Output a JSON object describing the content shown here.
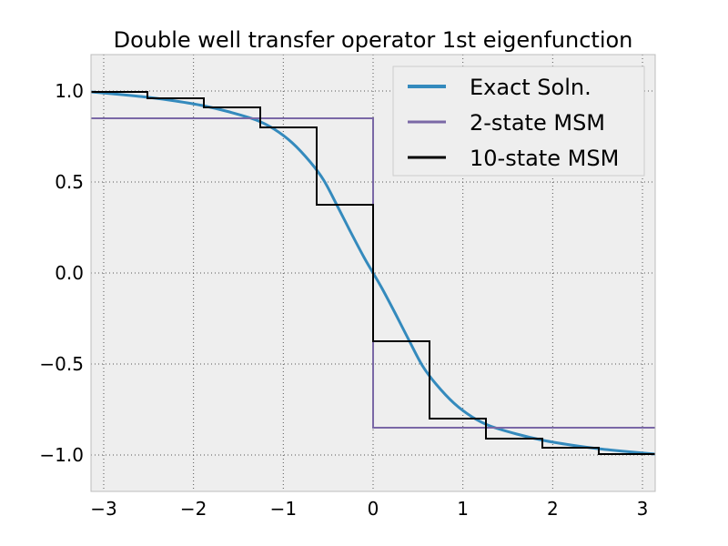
{
  "chart_data": {
    "type": "line",
    "title": "Double well transfer operator 1st eigenfunction",
    "xlabel": "",
    "ylabel": "",
    "xlim": [
      -3.14159,
      3.14159
    ],
    "ylim": [
      -1.2,
      1.2
    ],
    "xticks": [
      -3,
      -2,
      -1,
      0,
      1,
      2,
      3
    ],
    "xtick_labels": [
      "−3",
      "−2",
      "−1",
      "0",
      "1",
      "2",
      "3"
    ],
    "yticks": [
      1.0,
      0.5,
      0.0,
      -0.5,
      -1.0
    ],
    "ytick_labels": [
      "1.0",
      "0.5",
      "0.0",
      "−0.5",
      "−1.0"
    ],
    "grid": true,
    "legend_position": "top-right",
    "series": [
      {
        "name": "Exact Soln.",
        "color": "#348abd",
        "style": "smooth",
        "x": [
          -3.14159,
          -2.8,
          -2.5,
          -2.2,
          -1.9,
          -1.6,
          -1.3,
          -1.1,
          -0.9,
          -0.7,
          -0.55,
          -0.4,
          -0.25,
          -0.1,
          0.0,
          0.1,
          0.25,
          0.4,
          0.55,
          0.7,
          0.9,
          1.1,
          1.3,
          1.6,
          1.9,
          2.2,
          2.5,
          2.8,
          3.14159
        ],
        "y": [
          0.995,
          0.98,
          0.965,
          0.945,
          0.92,
          0.885,
          0.84,
          0.79,
          0.715,
          0.61,
          0.51,
          0.37,
          0.225,
          0.085,
          0.0,
          -0.085,
          -0.225,
          -0.37,
          -0.51,
          -0.61,
          -0.715,
          -0.79,
          -0.84,
          -0.885,
          -0.92,
          -0.945,
          -0.965,
          -0.98,
          -0.995
        ]
      },
      {
        "name": "2-state MSM",
        "color": "#7a68a6",
        "style": "step",
        "edges": [
          -3.14159,
          0.0,
          3.14159
        ],
        "values": [
          0.85,
          -0.85
        ]
      },
      {
        "name": "10-state MSM",
        "color": "#000000",
        "style": "step",
        "edges": [
          -3.14159,
          -2.51327,
          -1.88496,
          -1.25664,
          -0.62832,
          0.0,
          0.62832,
          1.25664,
          1.88496,
          2.51327,
          3.14159
        ],
        "values": [
          0.995,
          0.96,
          0.91,
          0.8,
          0.375,
          -0.375,
          -0.8,
          -0.91,
          -0.96,
          -0.995
        ]
      }
    ]
  }
}
